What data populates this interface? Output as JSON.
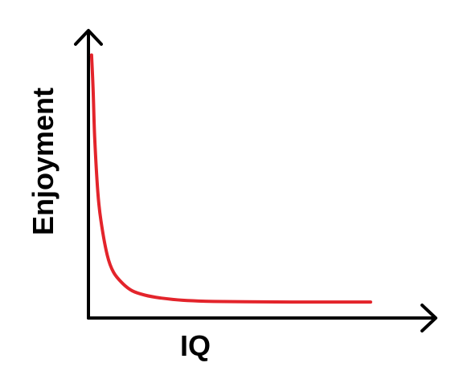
{
  "chart_data": {
    "type": "line",
    "title": "",
    "xlabel": "IQ",
    "ylabel": "Enjoyment",
    "xlim": [
      0,
      10
    ],
    "ylim": [
      0,
      10
    ],
    "grid": false,
    "legend": "none",
    "axis_ticks": false,
    "series": [
      {
        "color": "#e3242b",
        "x": [
          0.1,
          0.15,
          0.2,
          0.3,
          0.4,
          0.6,
          0.8,
          1.1,
          1.4,
          1.8,
          2.3,
          3.0,
          4.0,
          5.0,
          6.5,
          8.0,
          9.0
        ],
        "y": [
          9.2,
          8.0,
          6.3,
          4.4,
          3.4,
          2.2,
          1.6,
          1.2,
          0.95,
          0.8,
          0.7,
          0.62,
          0.58,
          0.57,
          0.56,
          0.56,
          0.56
        ]
      }
    ]
  }
}
